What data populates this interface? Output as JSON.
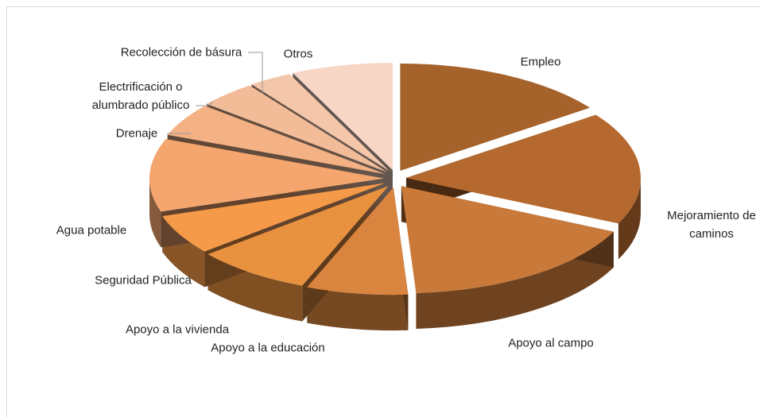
{
  "chart_data": {
    "type": "pie3d",
    "categories": [
      "Empleo",
      "Mejoramiento de caminos",
      "Apoyo al campo",
      "Apoyo a la educación",
      "Apoyo a la vivienda",
      "Seguridad Pública",
      "Agua potable",
      "Drenaje",
      "Electrificación o alumbrado público",
      "Recolección de básura",
      "Otros"
    ],
    "values": [
      15,
      17,
      17,
      7,
      8,
      6,
      11,
      5,
      4,
      3,
      7
    ],
    "colors": [
      "#a5622b",
      "#b5692f",
      "#c97a3a",
      "#d9843f",
      "#e8913f",
      "#f59a48",
      "#f4a66e",
      "#f3b184",
      "#f3bc98",
      "#f4c6aa",
      "#f7d6c6"
    ]
  }
}
